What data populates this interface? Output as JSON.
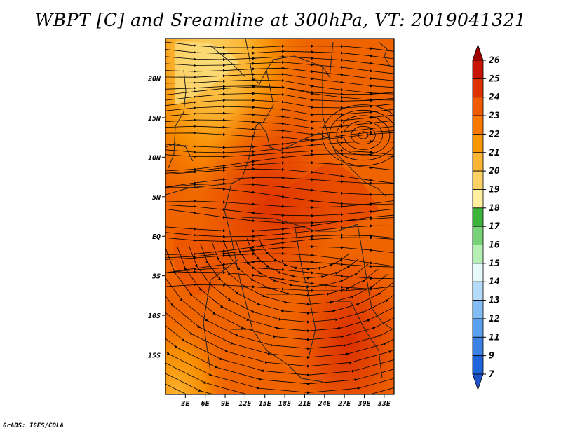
{
  "title": "WBPT [C] and Sreamline at 300hPa, VT: 2019041321",
  "credit": "GrADS: IGES/COLA",
  "map": {
    "lat_labels": [
      "20N",
      "15N",
      "10N",
      "5N",
      "EQ",
      "5S",
      "10S",
      "15S"
    ],
    "lat_values": [
      20,
      15,
      10,
      5,
      0,
      -5,
      -10,
      -15
    ],
    "lon_labels": [
      "3E",
      "6E",
      "9E",
      "12E",
      "15E",
      "18E",
      "21E",
      "24E",
      "27E",
      "30E",
      "33E"
    ],
    "lon_values": [
      3,
      6,
      9,
      12,
      15,
      18,
      21,
      24,
      27,
      30,
      33
    ],
    "lon_range": [
      0,
      34.5
    ],
    "lat_range": [
      -20,
      25
    ],
    "field": "WBPT",
    "level": "300hPa"
  },
  "colorbar": {
    "labels": [
      "26",
      "25",
      "24",
      "23",
      "22",
      "21",
      "20",
      "19",
      "18",
      "17",
      "16",
      "15",
      "14",
      "13",
      "12",
      "11",
      "9",
      "7"
    ],
    "colors": [
      "#a00000",
      "#c81400",
      "#e03200",
      "#f05a00",
      "#fa7800",
      "#fa9600",
      "#fcb432",
      "#fcd264",
      "#fff0a0",
      "#3cb43c",
      "#78d278",
      "#b4f0b4",
      "#e6fafa",
      "#b4dcfa",
      "#82bef5",
      "#5aa0f0",
      "#3c82e6",
      "#1e64dc",
      "#1e50c8"
    ]
  }
}
